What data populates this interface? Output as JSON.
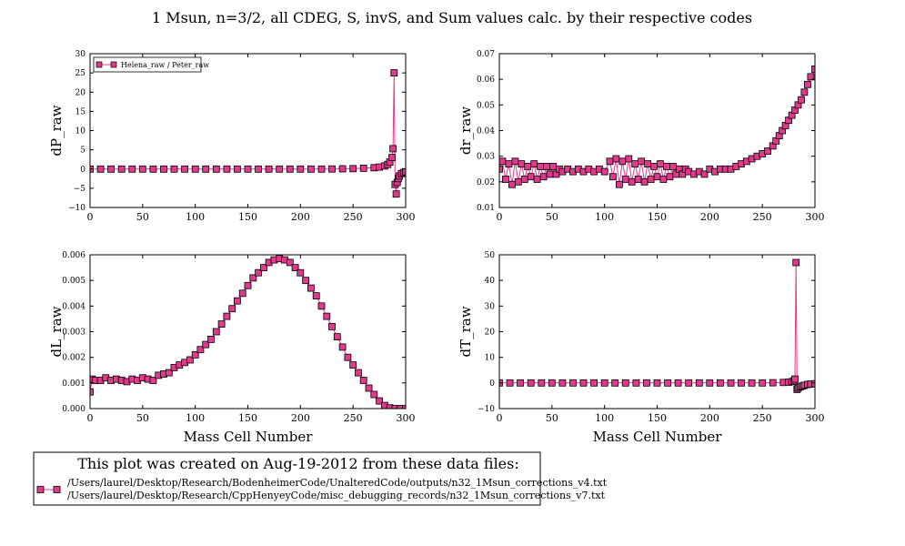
{
  "figure": {
    "title": "1 Msun, n=3/2, all CDEG, S, invS, and Sum values calc. by their respective codes",
    "series_color": "#e03a8c",
    "marker_edge_color": "#000000"
  },
  "footer": {
    "title": "This plot was created on Aug-19-2012 from these data files:",
    "files": [
      "/Users/laurel/Desktop/Research/BodenheimerCode/UnalteredCode/outputs/n32_1Msun_corrections_v4.txt",
      "/Users/laurel/Desktop/Research/CppHenyeyCode/misc_debugging_records/n32_1Msun_corrections_v7.txt"
    ]
  },
  "chart_data": [
    {
      "id": "dP",
      "type": "line",
      "ylabel": "dP_raw",
      "xlabel": "",
      "xlim": [
        0,
        300
      ],
      "ylim": [
        -10,
        30
      ],
      "xticks": [
        0,
        50,
        100,
        150,
        200,
        250,
        300
      ],
      "yticks": [
        -10,
        -5,
        0,
        5,
        10,
        15,
        20,
        25,
        30
      ],
      "ytick_labels": [
        "−10",
        "−5",
        "0",
        "5",
        "10",
        "15",
        "20",
        "25",
        "30"
      ],
      "legend": {
        "label": "Helena_raw / Peter_raw",
        "position": "upper-left"
      },
      "series": [
        {
          "name": "Helena_raw / Peter_raw",
          "x": [
            0,
            10,
            20,
            30,
            40,
            50,
            60,
            70,
            80,
            90,
            100,
            110,
            120,
            130,
            140,
            150,
            160,
            170,
            180,
            190,
            200,
            210,
            220,
            230,
            240,
            250,
            260,
            270,
            275,
            280,
            283,
            285,
            287,
            288,
            289,
            290,
            291,
            292,
            293,
            294,
            296,
            298,
            300
          ],
          "y": [
            0,
            0,
            0,
            0,
            0,
            0,
            0,
            0,
            0,
            0,
            0,
            0,
            0,
            0,
            0,
            0,
            0,
            0,
            0,
            0,
            0,
            0,
            0,
            0.02,
            0.05,
            0.1,
            0.2,
            0.35,
            0.5,
            0.8,
            1.2,
            1.8,
            3,
            5.3,
            25,
            -4,
            -6.5,
            -3.5,
            -2.5,
            -1.8,
            -1.2,
            -0.9,
            -0.7
          ]
        }
      ]
    },
    {
      "id": "dr",
      "type": "line",
      "ylabel": "dr_raw",
      "xlabel": "",
      "xlim": [
        0,
        300
      ],
      "ylim": [
        0.01,
        0.07
      ],
      "xticks": [
        0,
        50,
        100,
        150,
        200,
        250,
        300
      ],
      "yticks": [
        0.01,
        0.02,
        0.03,
        0.04,
        0.05,
        0.06,
        0.07
      ],
      "ytick_labels": [
        "0.01",
        "0.02",
        "0.03",
        "0.04",
        "0.05",
        "0.06",
        "0.07"
      ],
      "series": [
        {
          "name": "",
          "x": [
            0,
            3,
            6,
            9,
            12,
            15,
            18,
            21,
            24,
            27,
            30,
            33,
            36,
            39,
            42,
            45,
            48,
            51,
            54,
            57,
            60,
            65,
            70,
            75,
            80,
            85,
            90,
            95,
            100,
            105,
            108,
            111,
            114,
            117,
            120,
            123,
            126,
            129,
            132,
            135,
            138,
            141,
            144,
            147,
            150,
            153,
            156,
            159,
            162,
            165,
            168,
            171,
            174,
            177,
            180,
            185,
            190,
            195,
            200,
            205,
            210,
            215,
            220,
            225,
            230,
            235,
            240,
            245,
            250,
            255,
            260,
            263,
            266,
            269,
            272,
            275,
            278,
            281,
            284,
            287,
            290,
            293,
            296,
            300
          ],
          "y": [
            0.025,
            0.028,
            0.021,
            0.027,
            0.019,
            0.028,
            0.02,
            0.027,
            0.021,
            0.026,
            0.022,
            0.027,
            0.021,
            0.026,
            0.022,
            0.026,
            0.023,
            0.026,
            0.023,
            0.025,
            0.024,
            0.025,
            0.024,
            0.025,
            0.024,
            0.025,
            0.024,
            0.025,
            0.024,
            0.028,
            0.022,
            0.029,
            0.019,
            0.028,
            0.021,
            0.029,
            0.02,
            0.027,
            0.021,
            0.028,
            0.02,
            0.027,
            0.021,
            0.026,
            0.022,
            0.027,
            0.021,
            0.026,
            0.022,
            0.026,
            0.023,
            0.025,
            0.023,
            0.025,
            0.024,
            0.023,
            0.024,
            0.023,
            0.025,
            0.024,
            0.025,
            0.025,
            0.025,
            0.026,
            0.027,
            0.028,
            0.029,
            0.03,
            0.031,
            0.032,
            0.034,
            0.036,
            0.038,
            0.04,
            0.042,
            0.044,
            0.046,
            0.048,
            0.05,
            0.052,
            0.055,
            0.058,
            0.061,
            0.064
          ]
        }
      ]
    },
    {
      "id": "dL",
      "type": "line",
      "ylabel": "dL_raw",
      "xlabel": "Mass Cell Number",
      "xlim": [
        0,
        300
      ],
      "ylim": [
        0,
        0.006
      ],
      "xticks": [
        0,
        50,
        100,
        150,
        200,
        250,
        300
      ],
      "yticks": [
        0,
        0.001,
        0.002,
        0.003,
        0.004,
        0.005,
        0.006
      ],
      "ytick_labels": [
        "0.000",
        "0.001",
        "0.002",
        "0.003",
        "0.004",
        "0.005",
        "0.006"
      ],
      "series": [
        {
          "name": "",
          "x": [
            0,
            2,
            5,
            10,
            15,
            20,
            25,
            30,
            35,
            40,
            45,
            50,
            55,
            60,
            65,
            70,
            75,
            80,
            85,
            90,
            95,
            100,
            105,
            110,
            115,
            120,
            125,
            130,
            135,
            140,
            145,
            150,
            155,
            160,
            165,
            170,
            175,
            180,
            185,
            190,
            195,
            200,
            205,
            210,
            215,
            220,
            225,
            230,
            235,
            240,
            245,
            250,
            255,
            260,
            265,
            270,
            275,
            280,
            285,
            290,
            295,
            300
          ],
          "y": [
            0.00065,
            0.00115,
            0.0011,
            0.0011,
            0.0012,
            0.0011,
            0.00115,
            0.0011,
            0.00105,
            0.00115,
            0.0011,
            0.0012,
            0.00115,
            0.0011,
            0.0013,
            0.00135,
            0.0014,
            0.0016,
            0.0017,
            0.0018,
            0.0019,
            0.0021,
            0.0023,
            0.0025,
            0.0027,
            0.003,
            0.0033,
            0.0036,
            0.0039,
            0.0042,
            0.0045,
            0.0048,
            0.0051,
            0.0053,
            0.0055,
            0.0057,
            0.0058,
            0.00585,
            0.0058,
            0.0057,
            0.0055,
            0.0053,
            0.005,
            0.0047,
            0.0044,
            0.004,
            0.0036,
            0.0032,
            0.0028,
            0.0024,
            0.002,
            0.0017,
            0.0014,
            0.0011,
            0.0008,
            0.00055,
            0.0003,
            0.00012,
            3e-05,
            0,
            0,
            0
          ]
        }
      ]
    },
    {
      "id": "dT",
      "type": "line",
      "ylabel": "dT_raw",
      "xlabel": "Mass Cell Number",
      "xlim": [
        0,
        300
      ],
      "ylim": [
        -10,
        50
      ],
      "xticks": [
        0,
        50,
        100,
        150,
        200,
        250,
        300
      ],
      "yticks": [
        -10,
        0,
        10,
        20,
        30,
        40,
        50
      ],
      "ytick_labels": [
        "−10",
        "0",
        "10",
        "20",
        "30",
        "40",
        "50"
      ],
      "series": [
        {
          "name": "",
          "x": [
            0,
            10,
            20,
            30,
            40,
            50,
            60,
            70,
            80,
            90,
            100,
            110,
            120,
            130,
            140,
            150,
            160,
            170,
            180,
            190,
            200,
            210,
            220,
            230,
            240,
            250,
            260,
            270,
            275,
            278,
            280,
            281,
            282,
            283,
            284,
            286,
            288,
            290,
            293,
            296,
            300
          ],
          "y": [
            0,
            0,
            0,
            0,
            0,
            0,
            0,
            0,
            0,
            0,
            0,
            0,
            0,
            0,
            0,
            0,
            0,
            0,
            0,
            0,
            0,
            0,
            0,
            0,
            0,
            0,
            0.1,
            0.2,
            0.3,
            0.5,
            0.8,
            1.5,
            47,
            -2.5,
            -2,
            -1.5,
            -1.2,
            -0.9,
            -0.6,
            -0.4,
            -0.3
          ]
        }
      ]
    }
  ]
}
